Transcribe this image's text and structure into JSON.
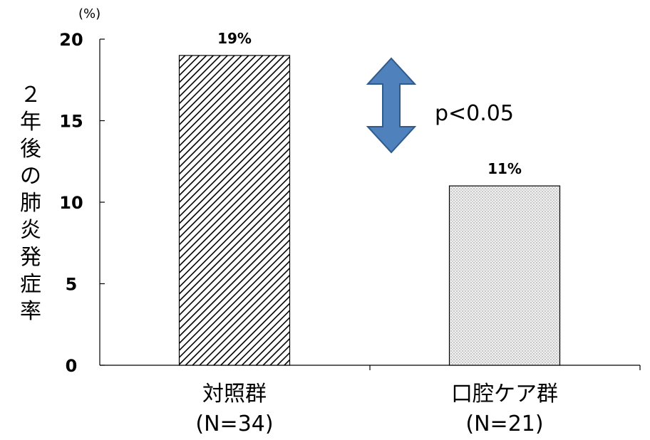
{
  "chart_data": {
    "type": "bar",
    "ylabel": "２年後の肺炎発症率",
    "y_unit": "(%)",
    "ylim": [
      0,
      20
    ],
    "yticks": [
      0,
      5,
      10,
      15,
      20
    ],
    "categories": [
      "対照群",
      "口腔ケア群"
    ],
    "category_sublabels": [
      "(N=34)",
      "(N=21)"
    ],
    "values": [
      19,
      11
    ],
    "data_labels": [
      "19%",
      "11%"
    ],
    "bar_patterns": [
      "diagonal-hatch",
      "dotted"
    ],
    "annotation": {
      "text": "p<0.05",
      "arrow_color": "#4f81bd"
    },
    "grid": false,
    "legend": "none"
  }
}
